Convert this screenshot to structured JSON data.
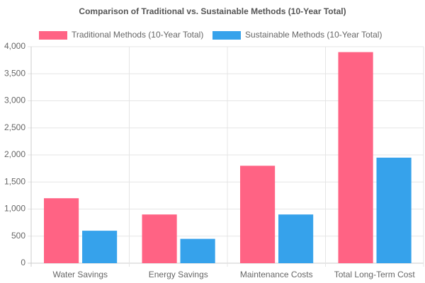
{
  "chart_data": {
    "type": "bar",
    "title": "Comparison of Traditional vs. Sustainable Methods (10-Year Total)",
    "categories": [
      "Water Savings",
      "Energy Savings",
      "Maintenance Costs",
      "Total Long-Term Cost"
    ],
    "series": [
      {
        "name": "Traditional Methods (10-Year Total)",
        "color": "#ff6384",
        "values": [
          1200,
          900,
          1800,
          3900
        ]
      },
      {
        "name": "Sustainable Methods (10-Year Total)",
        "color": "#36a2eb",
        "values": [
          600,
          450,
          900,
          1950
        ]
      }
    ],
    "ylim": [
      0,
      4000
    ],
    "yticks": [
      0,
      500,
      {
        "value": 1000,
        "label": "1,000"
      },
      {
        "value": 1500,
        "label": "1,500"
      },
      {
        "value": 2000,
        "label": "2,000"
      },
      {
        "value": 2500,
        "label": "2,500"
      },
      {
        "value": 3000,
        "label": "3,000"
      },
      {
        "value": 3500,
        "label": "3,500"
      },
      {
        "value": 4000,
        "label": "4,000"
      }
    ],
    "grid": true,
    "legend": "top"
  }
}
